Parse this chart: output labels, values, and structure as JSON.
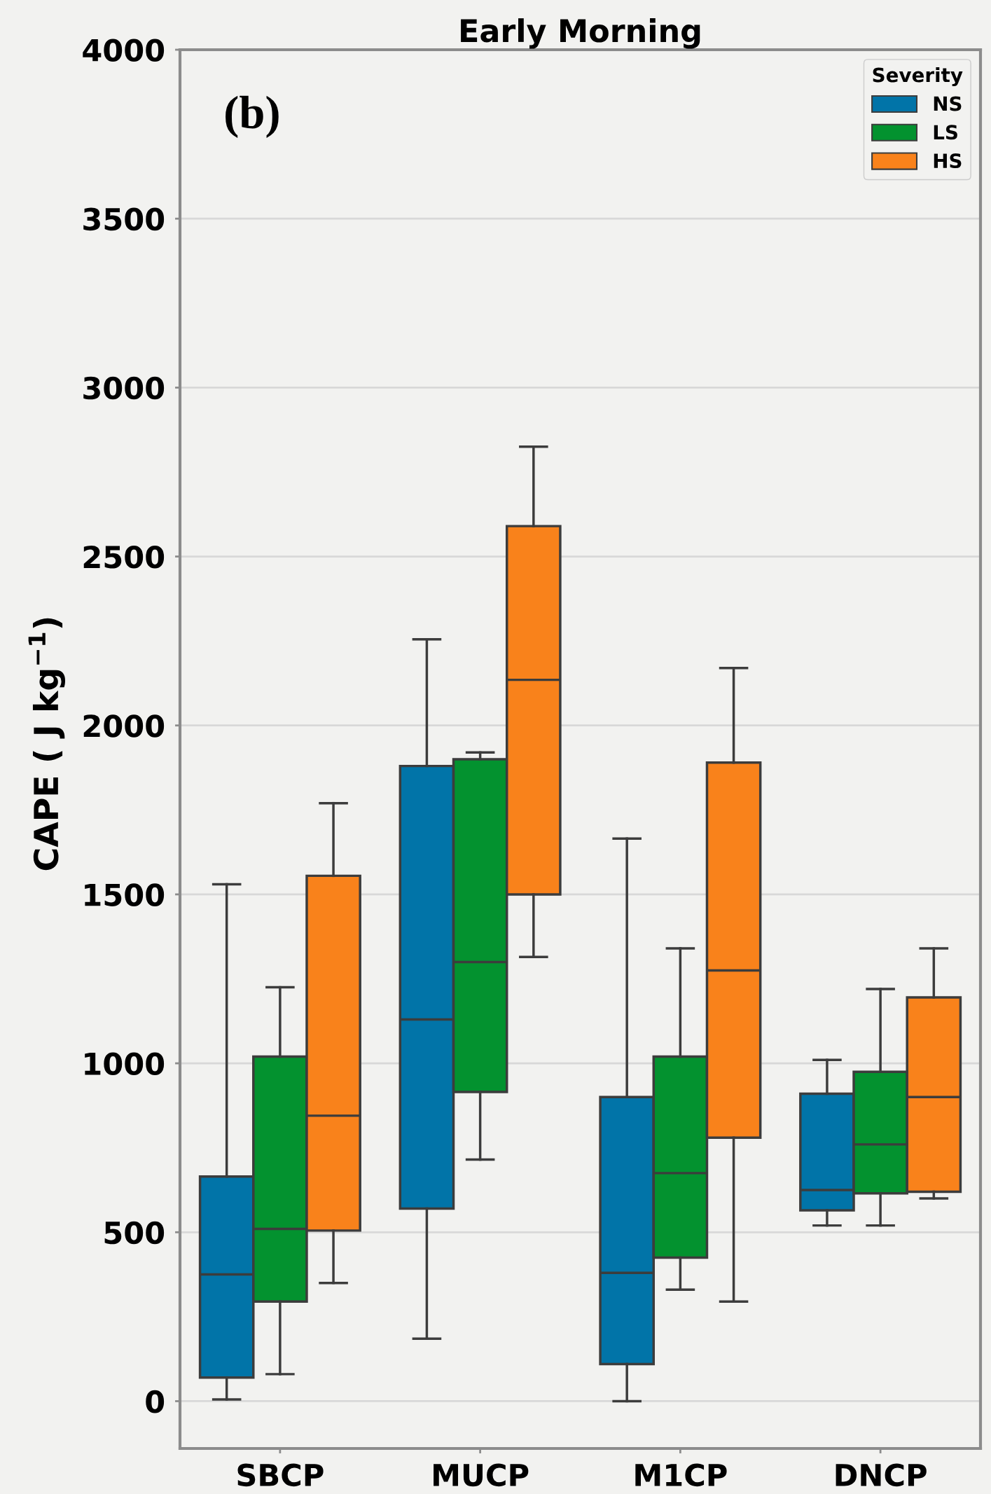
{
  "chart_data": {
    "type": "box",
    "title": "Early Morning",
    "ylabel": "CAPE ( J kg$^{−1}$)",
    "legend_title": "Severity",
    "annotations": [
      "(b)"
    ],
    "categories": [
      "SBCP",
      "MUCP",
      "M1CP",
      "DNCP"
    ],
    "series": [
      {
        "name": "NS",
        "color": "#0174a8",
        "boxes": [
          {
            "low": 5,
            "q1": 70,
            "median": 375,
            "q3": 665,
            "high": 1530
          },
          {
            "low": 185,
            "q1": 570,
            "median": 1130,
            "q3": 1880,
            "high": 2255
          },
          {
            "low": 0,
            "q1": 110,
            "median": 380,
            "q3": 900,
            "high": 1665
          },
          {
            "low": 520,
            "q1": 565,
            "median": 625,
            "q3": 910,
            "high": 1010
          }
        ]
      },
      {
        "name": "LS",
        "color": "#03922f",
        "boxes": [
          {
            "low": 80,
            "q1": 295,
            "median": 510,
            "q3": 1020,
            "high": 1225
          },
          {
            "low": 715,
            "q1": 915,
            "median": 1300,
            "q3": 1900,
            "high": 1920
          },
          {
            "low": 330,
            "q1": 425,
            "median": 675,
            "q3": 1020,
            "high": 1340
          },
          {
            "low": 520,
            "q1": 615,
            "median": 760,
            "q3": 975,
            "high": 1220
          }
        ]
      },
      {
        "name": "HS",
        "color": "#f9821b",
        "boxes": [
          {
            "low": 350,
            "q1": 505,
            "median": 845,
            "q3": 1555,
            "high": 1770
          },
          {
            "low": 1315,
            "q1": 1500,
            "median": 2135,
            "q3": 2590,
            "high": 2825
          },
          {
            "low": 295,
            "q1": 780,
            "median": 1275,
            "q3": 1890,
            "high": 2170
          },
          {
            "low": 600,
            "q1": 620,
            "median": 900,
            "q3": 1195,
            "high": 1340
          }
        ]
      }
    ],
    "ylim": [
      -140,
      4000
    ],
    "yticks": [
      0,
      500,
      1000,
      1500,
      2000,
      2500,
      3000,
      3500,
      4000
    ],
    "grid": "y",
    "legend": "top right"
  }
}
